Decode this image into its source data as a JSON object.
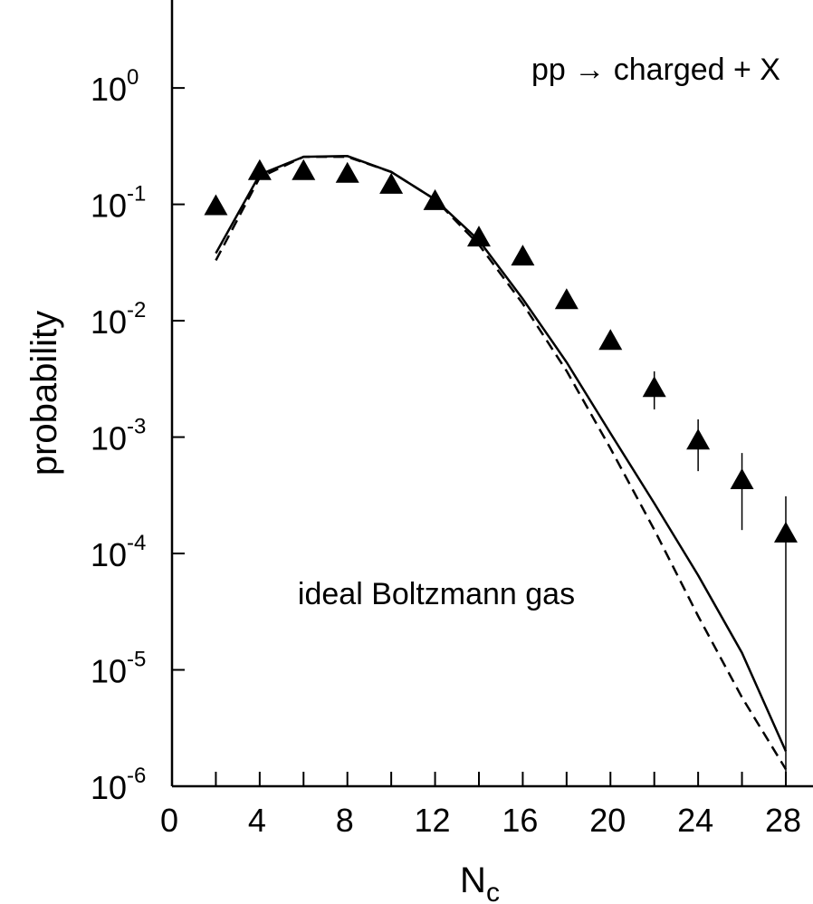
{
  "chart_data": {
    "type": "scatter",
    "ylabel": "probability",
    "xlabel": {
      "text": "N",
      "sub": "c"
    },
    "annotations": [
      "pp → charged + X",
      "ideal Boltzmann gas"
    ],
    "log_y": true,
    "xlim": [
      0,
      29.24
    ],
    "ylim": [
      1e-06,
      5.7
    ],
    "xticks": [
      0,
      4,
      8,
      12,
      16,
      20,
      24,
      28
    ],
    "xticks_minor": [
      2,
      6,
      10,
      14,
      18,
      22,
      26
    ],
    "yticks": [
      {
        "value": 1,
        "label": "10",
        "exponent": "0"
      },
      {
        "value": 0.1,
        "label": "10",
        "exponent": "-1"
      },
      {
        "value": 0.01,
        "label": "10",
        "exponent": "-2"
      },
      {
        "value": 0.001,
        "label": "10",
        "exponent": "-3"
      },
      {
        "value": 0.0001,
        "label": "10",
        "exponent": "-4"
      },
      {
        "value": 1e-05,
        "label": "10",
        "exponent": "-5"
      },
      {
        "value": 1e-06,
        "label": "10",
        "exponent": "-6"
      }
    ],
    "x": [
      2,
      4,
      6,
      8,
      10,
      12,
      14,
      16,
      18,
      20,
      22,
      24,
      26,
      28
    ],
    "points": {
      "color": "#000000",
      "values": [
        0.095,
        0.19,
        0.19,
        0.18,
        0.145,
        0.105,
        0.051,
        0.035,
        0.0148,
        0.0066,
        0.0026,
        0.00092,
        0.00042,
        0.000146
      ],
      "err_high": [
        null,
        null,
        null,
        null,
        null,
        null,
        null,
        null,
        null,
        null,
        0.00367,
        0.00142,
        0.00073,
        0.00031
      ],
      "err_low": [
        null,
        null,
        null,
        null,
        null,
        null,
        null,
        null,
        null,
        null,
        0.00173,
        0.00051,
        0.000159,
        1e-06
      ]
    },
    "lines": [
      {
        "style": "solid",
        "color": "#000000",
        "values": [
          0.038,
          0.18,
          0.256,
          0.26,
          0.19,
          0.11,
          0.049,
          0.0154,
          0.0044,
          0.00108,
          0.00027,
          6.5e-05,
          1.4e-05,
          2e-06
        ]
      },
      {
        "style": "dashed",
        "color": "#000000",
        "values": [
          0.033,
          0.17,
          0.256,
          0.256,
          0.19,
          0.11,
          0.045,
          0.014,
          0.0037,
          0.0008,
          0.00016,
          2.9e-05,
          5.8e-06,
          1.4e-06
        ]
      }
    ]
  }
}
